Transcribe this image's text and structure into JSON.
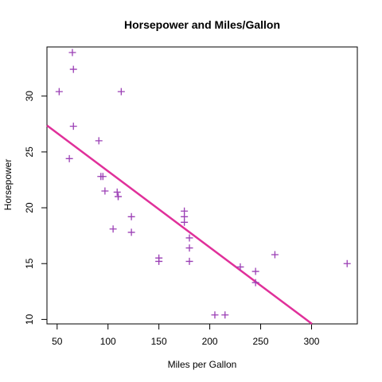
{
  "chart_data": {
    "type": "scatter",
    "title": "Horsepower and Miles/Gallon",
    "xlabel": "Miles per Gallon",
    "ylabel": "Horsepower",
    "xlim": [
      40,
      345
    ],
    "ylim": [
      9.6,
      34.4
    ],
    "xticks": [
      50,
      100,
      150,
      200,
      250,
      300
    ],
    "yticks": [
      10,
      15,
      20,
      25,
      30
    ],
    "grid": false,
    "marker": "plus",
    "colors": {
      "points": "#9b3fb5",
      "line": "#e0309a"
    },
    "points": [
      {
        "x": 52,
        "y": 30.4
      },
      {
        "x": 62,
        "y": 24.4
      },
      {
        "x": 65,
        "y": 33.9
      },
      {
        "x": 66,
        "y": 32.4
      },
      {
        "x": 66,
        "y": 27.3
      },
      {
        "x": 91,
        "y": 26.0
      },
      {
        "x": 93,
        "y": 22.8
      },
      {
        "x": 95,
        "y": 22.8
      },
      {
        "x": 97,
        "y": 21.5
      },
      {
        "x": 105,
        "y": 18.1
      },
      {
        "x": 109,
        "y": 21.4
      },
      {
        "x": 110,
        "y": 21.0
      },
      {
        "x": 110,
        "y": 21.0
      },
      {
        "x": 113,
        "y": 30.4
      },
      {
        "x": 123,
        "y": 17.8
      },
      {
        "x": 123,
        "y": 19.2
      },
      {
        "x": 150,
        "y": 15.2
      },
      {
        "x": 150,
        "y": 15.5
      },
      {
        "x": 175,
        "y": 18.7
      },
      {
        "x": 175,
        "y": 19.2
      },
      {
        "x": 175,
        "y": 19.7
      },
      {
        "x": 180,
        "y": 16.4
      },
      {
        "x": 180,
        "y": 17.3
      },
      {
        "x": 180,
        "y": 15.2
      },
      {
        "x": 205,
        "y": 10.4
      },
      {
        "x": 215,
        "y": 10.4
      },
      {
        "x": 230,
        "y": 14.7
      },
      {
        "x": 245,
        "y": 13.3
      },
      {
        "x": 245,
        "y": 14.3
      },
      {
        "x": 264,
        "y": 15.8
      },
      {
        "x": 335,
        "y": 15.0
      }
    ],
    "regression_line": {
      "intercept": 30.099,
      "slope": -0.06823
    }
  }
}
